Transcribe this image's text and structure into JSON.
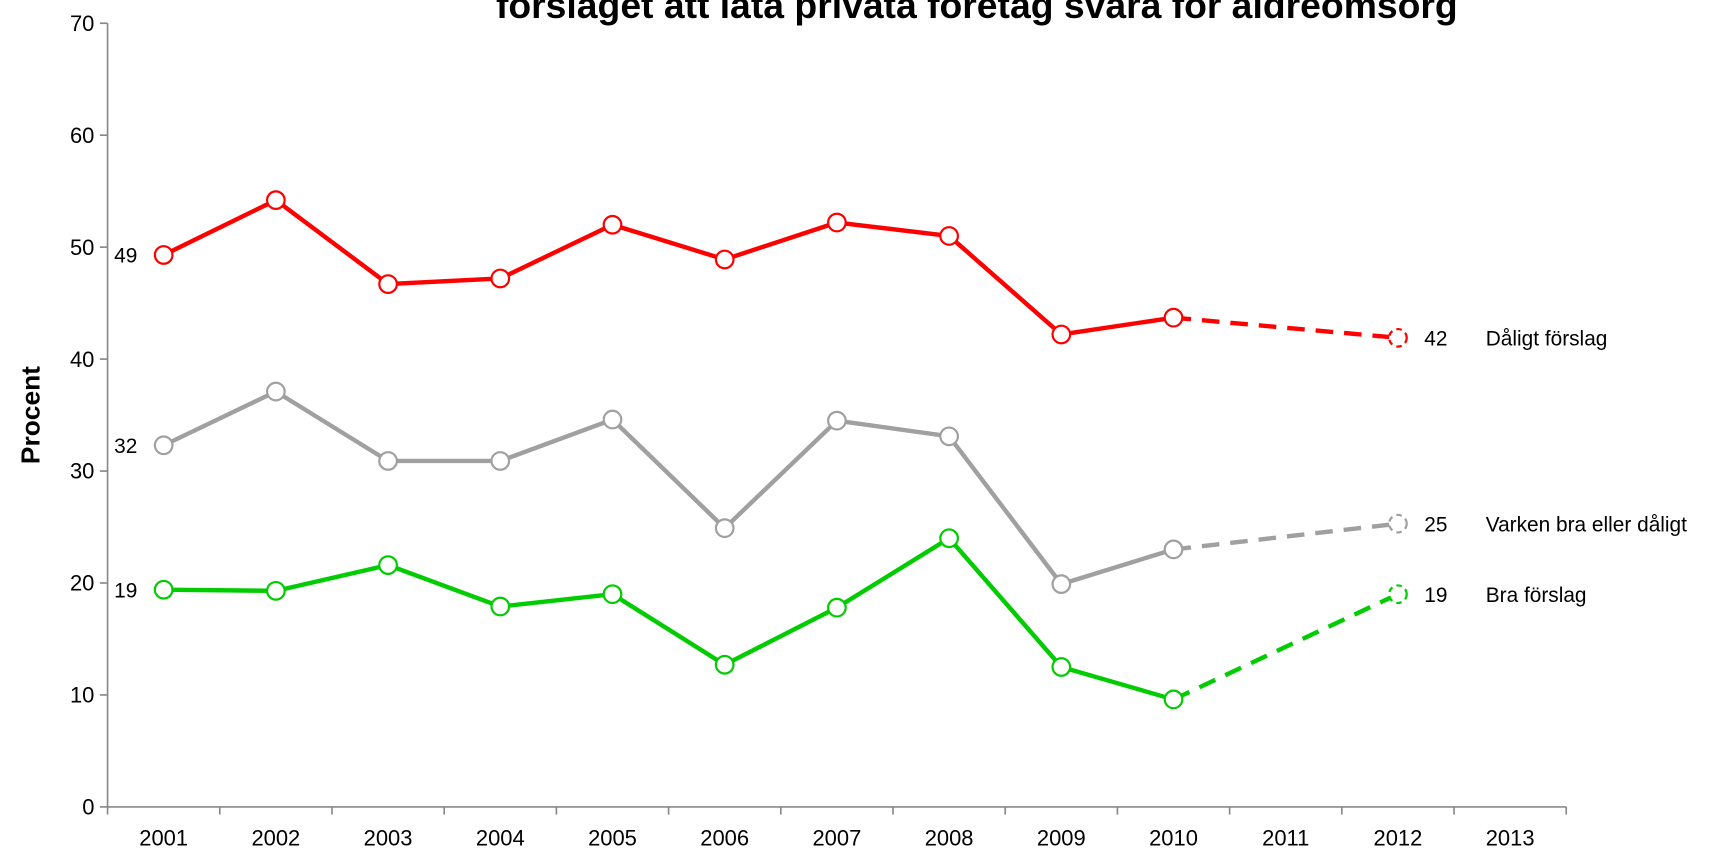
{
  "chart_data": {
    "type": "line",
    "title": "förslaget att låta privata företag svara för äldreomsorg",
    "y_label": "Procent",
    "categories": [
      "2001",
      "2002",
      "2003",
      "2004",
      "2005",
      "2006",
      "2007",
      "2008",
      "2009",
      "2010",
      "2011",
      "2012",
      "2013"
    ],
    "series": [
      {
        "name": "Dåligt förslag",
        "color": "#ff0000",
        "values": [
          49.3,
          54.2,
          46.7,
          47.2,
          52.0,
          48.9,
          52.2,
          51.0,
          42.2,
          43.7,
          null,
          41.9,
          null
        ],
        "value_labels": [
          "49",
          null,
          null,
          null,
          null,
          null,
          null,
          null,
          null,
          null,
          null,
          "42",
          null
        ]
      },
      {
        "name": "Varken bra eller dåligt",
        "color": "#a0a0a0",
        "values": [
          32.3,
          37.1,
          30.9,
          30.9,
          34.6,
          24.9,
          34.5,
          33.1,
          19.9,
          23.0,
          null,
          25.3,
          null
        ],
        "value_labels": [
          "32",
          null,
          null,
          null,
          null,
          null,
          null,
          null,
          null,
          null,
          null,
          "25",
          null
        ]
      },
      {
        "name": "Bra förslag",
        "color": "#00cc00",
        "values": [
          19.4,
          19.3,
          21.6,
          17.9,
          19.0,
          12.7,
          17.8,
          24.0,
          12.5,
          9.6,
          null,
          19.0,
          null
        ],
        "value_labels": [
          "19",
          null,
          null,
          null,
          null,
          null,
          null,
          null,
          null,
          null,
          null,
          "19",
          null
        ]
      }
    ],
    "ylim": [
      0,
      70
    ],
    "yticks": [
      0,
      10,
      20,
      30,
      40,
      50,
      60,
      70
    ],
    "grid": false,
    "gap_style": "dashed",
    "legend": "right"
  }
}
